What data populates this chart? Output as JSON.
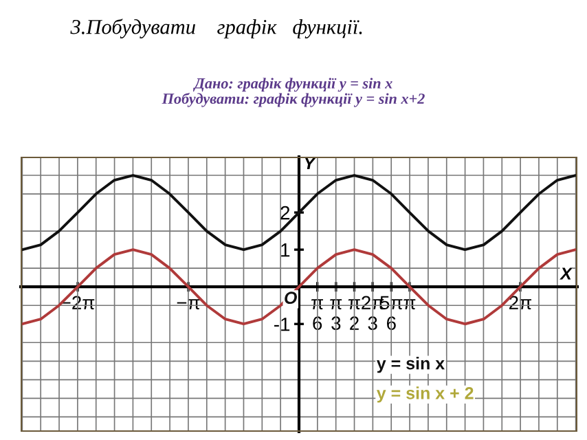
{
  "chart_data": {
    "type": "line",
    "title": "3.Побудувати    графік   функції.",
    "subtitle": "Дано: графік функції y = sin x\nПобудувати: графік функції y = sin x+2",
    "xlabel": "X",
    "ylabel": "Y",
    "x": [
      -7.85,
      -7.33,
      -6.81,
      -6.28,
      -5.76,
      -5.24,
      -4.71,
      -4.19,
      -3.67,
      -3.14,
      -2.62,
      -2.09,
      -1.57,
      -1.05,
      -0.52,
      0,
      0.52,
      1.05,
      1.57,
      2.09,
      2.62,
      3.14,
      3.67,
      4.19,
      4.71,
      5.24,
      5.76,
      6.28,
      6.81,
      7.33,
      7.85
    ],
    "series": [
      {
        "color": "#b03a3a",
        "values": [
          -1,
          -0.87,
          -0.5,
          0,
          0.5,
          0.87,
          1,
          0.87,
          0.5,
          0,
          -0.5,
          -0.87,
          -1,
          -0.87,
          -0.5,
          0,
          0.5,
          0.87,
          1,
          0.87,
          0.5,
          0,
          -0.5,
          -0.87,
          -1,
          -0.87,
          -0.5,
          0,
          0.5,
          0.87,
          1
        ]
      },
      {
        "color": "#111111",
        "values": [
          1,
          1.13,
          1.5,
          2,
          2.5,
          2.87,
          3,
          2.87,
          2.5,
          2,
          1.5,
          1.13,
          1,
          1.13,
          1.5,
          2,
          2.5,
          2.87,
          3,
          2.87,
          2.5,
          2,
          1.5,
          1.13,
          1,
          1.13,
          1.5,
          2,
          2.5,
          2.87,
          3
        ]
      }
    ],
    "xlim": [
      -7.9,
      7.9
    ],
    "ylim": [
      -3.9,
      3.5
    ],
    "xticks": [
      {
        "value": -6.28,
        "label": "−2π"
      },
      {
        "value": -3.14,
        "label": "−π"
      },
      {
        "value": 0.52,
        "label": "π\n6"
      },
      {
        "value": 1.05,
        "label": "π\n3"
      },
      {
        "value": 1.57,
        "label": "π\n2"
      },
      {
        "value": 2.09,
        "label": "2π\n3"
      },
      {
        "value": 2.62,
        "label": "5π\n6"
      },
      {
        "value": 3.14,
        "label": "π"
      },
      {
        "value": 6.28,
        "label": "2π"
      }
    ],
    "yticks": [
      {
        "value": -1,
        "label": "-1"
      },
      1,
      2
    ],
    "grid": true,
    "annotations": [
      "O",
      "y = sin x",
      "y = sin x + 2"
    ]
  }
}
